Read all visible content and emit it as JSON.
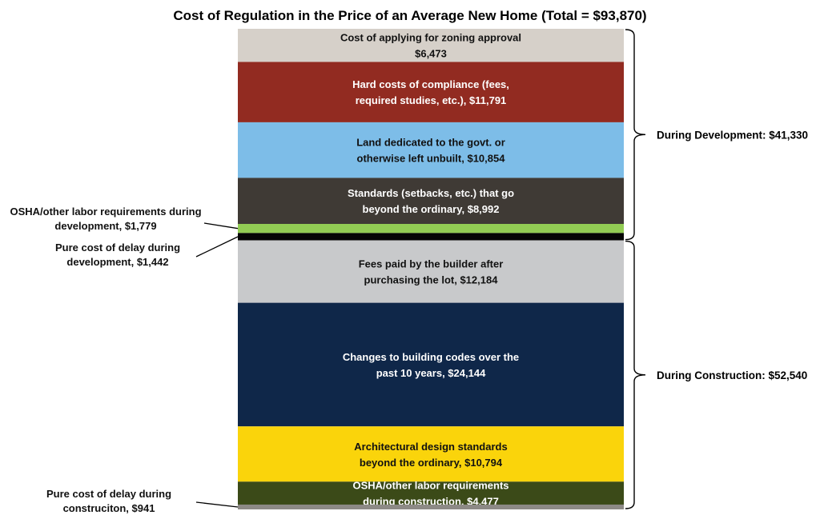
{
  "chart_data": {
    "type": "bar",
    "stacked": true,
    "title": "Cost of Regulation in the Price of an Average New Home (Total = $93,870)",
    "total": 93870,
    "segments": [
      {
        "label_lines": [
          "Cost of applying for zoning approval",
          "$6,473"
        ],
        "value": 6473,
        "color": "#d6d0c9",
        "text_color": "#111111",
        "label_position": "inside"
      },
      {
        "label_lines": [
          "Hard costs of compliance (fees,",
          "required studies, etc.), $11,791"
        ],
        "value": 11791,
        "color": "#922b21",
        "text_color": "#ffffff",
        "label_position": "inside"
      },
      {
        "label_lines": [
          "Land dedicated to the govt. or",
          "otherwise left unbuilt, $10,854"
        ],
        "value": 10854,
        "color": "#7dbde8",
        "text_color": "#111111",
        "label_position": "inside"
      },
      {
        "label_lines": [
          "Standards (setbacks, etc.) that go",
          "beyond the ordinary, $8,992"
        ],
        "value": 8992,
        "color": "#3f3a35",
        "text_color": "#ffffff",
        "label_position": "inside"
      },
      {
        "label_lines": [
          "OSHA/other labor requirements during",
          "development, $1,779"
        ],
        "value": 1779,
        "color": "#92cc54",
        "text_color": "#111111",
        "label_position": "callout-upper"
      },
      {
        "label_lines": [
          "Pure cost of delay during",
          "development, $1,442"
        ],
        "value": 1442,
        "color": "#050505",
        "text_color": "#111111",
        "label_position": "callout-lower"
      },
      {
        "label_lines": [
          "Fees paid by the builder after",
          "purchasing the lot, $12,184"
        ],
        "value": 12184,
        "color": "#c8c9cb",
        "text_color": "#111111",
        "label_position": "inside"
      },
      {
        "label_lines": [
          "Changes to building codes over the",
          "past 10 years, $24,144"
        ],
        "value": 24144,
        "color": "#0f2749",
        "text_color": "#ffffff",
        "label_position": "inside"
      },
      {
        "label_lines": [
          "Architectural design standards",
          "beyond the ordinary, $10,794"
        ],
        "value": 10794,
        "color": "#fad40b",
        "text_color": "#111111",
        "label_position": "inside"
      },
      {
        "label_lines": [
          "OSHA/other labor requirements",
          "during construction, $4,477"
        ],
        "value": 4477,
        "color": "#3b4a18",
        "text_color": "#ffffff",
        "label_position": "inside"
      },
      {
        "label_lines": [
          "Pure cost of delay during",
          "construciton, $941"
        ],
        "value": 941,
        "color": "#8d8a86",
        "text_color": "#111111",
        "label_position": "callout-bottom"
      }
    ],
    "groups": [
      {
        "label": "During Development:  $41,330",
        "value": 41330,
        "first_segment": 0,
        "last_segment": 5
      },
      {
        "label": "During Construction:  $52,540",
        "value": 52540,
        "first_segment": 6,
        "last_segment": 10
      }
    ]
  }
}
